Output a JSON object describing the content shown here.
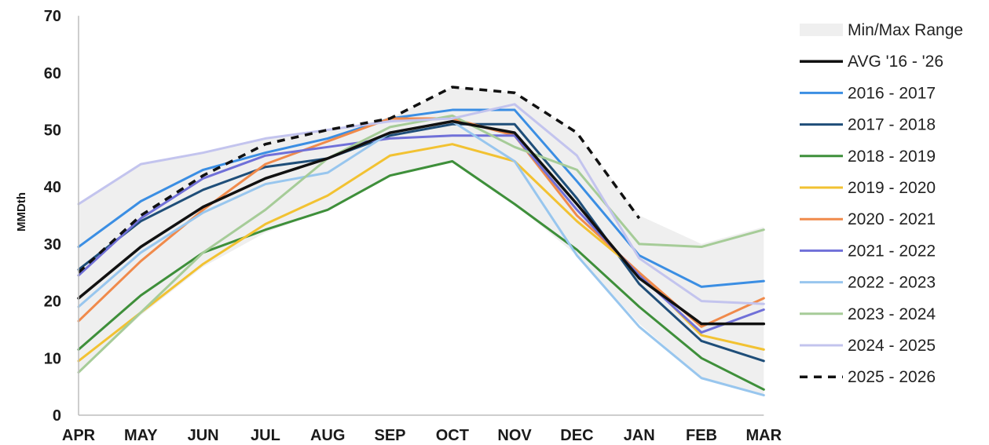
{
  "chart_data": {
    "type": "line",
    "title": "",
    "xlabel": "",
    "ylabel": "MMDth",
    "ylim": [
      0,
      70
    ],
    "yticks": [
      0,
      10,
      20,
      30,
      40,
      50,
      60,
      70
    ],
    "grid": false,
    "legend_position": "right",
    "categories": [
      "APR",
      "MAY",
      "JUN",
      "JUL",
      "AUG",
      "SEP",
      "OCT",
      "NOV",
      "DEC",
      "JAN",
      "FEB",
      "MAR"
    ],
    "range": {
      "name": "Min/Max Range",
      "color": "#efefef",
      "min": [
        7.5,
        17.5,
        26,
        32,
        36,
        42,
        44.5,
        37,
        28,
        16,
        6.5,
        3.5
      ],
      "max": [
        37,
        44,
        46,
        48.5,
        50,
        52,
        57.5,
        56.5,
        49.5,
        35,
        30,
        33
      ]
    },
    "series": [
      {
        "name": "AVG '16 - '26",
        "color": "#111111",
        "style": "solid",
        "width": 3.5,
        "values": [
          20.5,
          29.5,
          36.5,
          41.5,
          45,
          49.5,
          51.5,
          49.5,
          37,
          24,
          16,
          16
        ]
      },
      {
        "name": "2016 - 2017",
        "color": "#3b8ee3",
        "style": "solid",
        "width": 3,
        "values": [
          29.5,
          37.5,
          43,
          46,
          48.5,
          52,
          53.5,
          53.5,
          41,
          28,
          22.5,
          23.5
        ]
      },
      {
        "name": "2017 - 2018",
        "color": "#1f4e79",
        "style": "solid",
        "width": 3,
        "values": [
          25.5,
          34,
          39.5,
          43.5,
          45,
          49,
          51,
          51,
          38,
          23,
          13,
          9.5
        ]
      },
      {
        "name": "2018 - 2019",
        "color": "#3e8f3a",
        "style": "solid",
        "width": 3,
        "values": [
          11.5,
          21,
          28.5,
          32.5,
          36,
          42,
          44.5,
          37,
          29,
          19,
          10,
          4.5
        ]
      },
      {
        "name": "2019 - 2020",
        "color": "#f2c232",
        "style": "solid",
        "width": 3,
        "values": [
          9.5,
          18,
          26.5,
          33.5,
          38.5,
          45.5,
          47.5,
          44.5,
          34,
          25,
          14,
          11.5
        ]
      },
      {
        "name": "2020 - 2021",
        "color": "#f08a4b",
        "style": "solid",
        "width": 3,
        "values": [
          16.5,
          27,
          36,
          44,
          48,
          52,
          52,
          49,
          35,
          25,
          15.5,
          20.5
        ]
      },
      {
        "name": "2021 - 2022",
        "color": "#7070d8",
        "style": "solid",
        "width": 3,
        "values": [
          24.5,
          34.5,
          41.5,
          45.5,
          47,
          48.5,
          49,
          49,
          36,
          24.5,
          14.5,
          18.5
        ]
      },
      {
        "name": "2022 - 2023",
        "color": "#98c6ee",
        "style": "solid",
        "width": 3,
        "values": [
          19,
          28.5,
          35.5,
          40.5,
          42.5,
          49.5,
          51.5,
          44.5,
          28,
          15.5,
          6.5,
          3.5
        ]
      },
      {
        "name": "2023 - 2024",
        "color": "#a6cc98",
        "style": "solid",
        "width": 3,
        "values": [
          7.5,
          18,
          28.5,
          36,
          45,
          50.5,
          52.5,
          47,
          43,
          30,
          29.5,
          32.5
        ]
      },
      {
        "name": "2024 - 2025",
        "color": "#c3c4ee",
        "style": "solid",
        "width": 3,
        "values": [
          37,
          44,
          46,
          48.5,
          50,
          51.5,
          52,
          54.5,
          45.5,
          27.5,
          20,
          19.5
        ]
      },
      {
        "name": "2025 - 2026",
        "color": "#111111",
        "style": "dashed",
        "width": 3.5,
        "values": [
          25,
          35,
          42,
          47.5,
          50,
          52,
          57.5,
          56.5,
          49.5,
          34.5,
          null,
          null
        ]
      }
    ]
  }
}
